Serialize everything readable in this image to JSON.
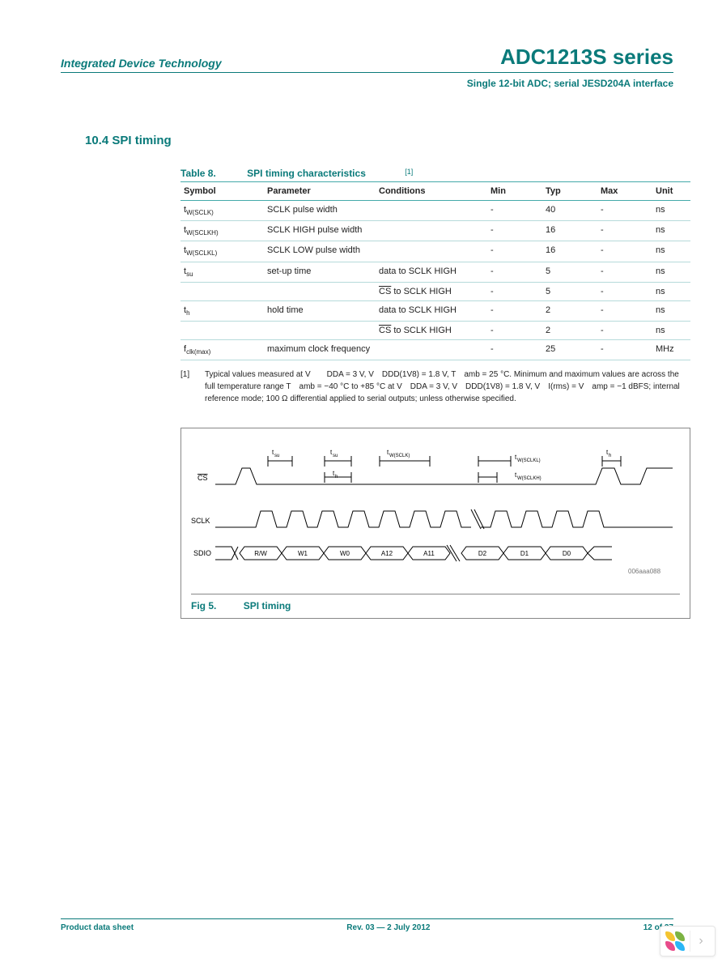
{
  "header": {
    "company": "Integrated Device Technology",
    "product": "ADC1213S series",
    "subtitle": "Single 12-bit ADC; serial JESD204A interface"
  },
  "section": {
    "num_title": "10.4 SPI timing"
  },
  "table": {
    "num": "Table 8.",
    "title": "SPI timing characteristics",
    "ref": "[1]",
    "headers": {
      "c1": "Symbol",
      "c2": "Parameter",
      "c3": "Conditions",
      "c4": "Min",
      "c5": "Typ",
      "c6": "Max",
      "c7": "Unit"
    },
    "rows": [
      {
        "sym": "t",
        "sub": "W(SCLK)",
        "param": "SCLK pulse width",
        "cond": "",
        "min": "-",
        "typ": "40",
        "max": "-",
        "unit": "ns"
      },
      {
        "sym": "t",
        "sub": "W(SCLKH)",
        "param": "SCLK HIGH pulse width",
        "cond": "",
        "min": "-",
        "typ": "16",
        "max": "-",
        "unit": "ns"
      },
      {
        "sym": "t",
        "sub": "W(SCLKL)",
        "param": "SCLK LOW pulse width",
        "cond": "",
        "min": "-",
        "typ": "16",
        "max": "-",
        "unit": "ns"
      },
      {
        "sym": "t",
        "sub": "su",
        "param": "set-up time",
        "cond": "data to SCLK HIGH",
        "min": "-",
        "typ": "5",
        "max": "-",
        "unit": "ns"
      },
      {
        "sym": "",
        "sub": "",
        "param": "",
        "cond": "CS to SCLK HIGH",
        "min": "-",
        "typ": "5",
        "max": "-",
        "unit": "ns",
        "cs_ovl": true
      },
      {
        "sym": "t",
        "sub": "h",
        "param": "hold time",
        "cond": "data to SCLK HIGH",
        "min": "-",
        "typ": "2",
        "max": "-",
        "unit": "ns"
      },
      {
        "sym": "",
        "sub": "",
        "param": "",
        "cond": "CS to SCLK HIGH",
        "min": "-",
        "typ": "2",
        "max": "-",
        "unit": "ns",
        "cs_ovl": true
      },
      {
        "sym": "f",
        "sub": "clk(max)",
        "param": "maximum clock frequency",
        "cond": "",
        "min": "-",
        "typ": "25",
        "max": "-",
        "unit": "MHz"
      }
    ]
  },
  "footnote": {
    "mark": "[1]",
    "text": "Typical values measured at V  DDA = 3 V, V DDD(1V8) = 1.8 V, T amb = 25 °C. Minimum and maximum values are across the full temperature range T amb = −40 °C to +85 °C at V DDA = 3 V, V DDD(1V8) = 1.8 V, V I(rms) = V amp = −1 dBFS; internal reference mode; 100 Ω differential applied to serial outputs; unless otherwise specified."
  },
  "figure": {
    "caption_num": "Fig 5.",
    "caption_title": "SPI timing",
    "code": "006aaa088",
    "signals": {
      "cs": "CS",
      "sclk": "SCLK",
      "sdio": "SDIO"
    },
    "timing_labels": {
      "tsu": "t_su",
      "th": "t_h",
      "twsclk": "t_W(SCLK)",
      "twsclkl": "t_W(SCLKL)",
      "twsclkh": "t_W(SCLKH)"
    },
    "bits": [
      "R/W",
      "W1",
      "W0",
      "A12",
      "A11",
      "D2",
      "D1",
      "D0"
    ]
  },
  "footer": {
    "left": "Product data sheet",
    "center": "Rev. 03 — 2 July 2012",
    "right": "12 of 37"
  },
  "colors": {
    "accent": "#0a7a7a",
    "logo": [
      "#f4c430",
      "#e84b8a",
      "#7cb342",
      "#29b6f6"
    ]
  }
}
